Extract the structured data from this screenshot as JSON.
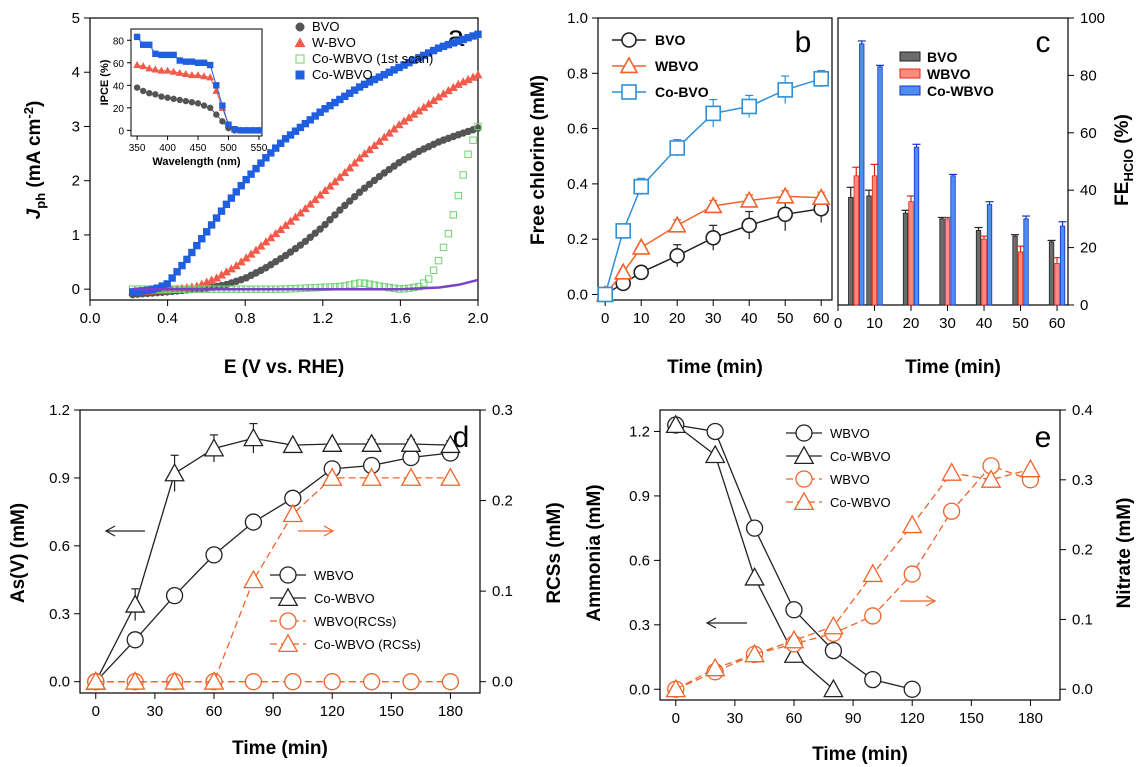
{
  "figure": {
    "panels": [
      "a",
      "b",
      "c",
      "d",
      "e"
    ]
  },
  "colors": {
    "BVO": "#555555",
    "WBVO": "#f25a4a",
    "CoWBVO_scan1": "#6fd36f",
    "CoWBVO": "#1f5fe0",
    "orange": "#f0642a",
    "black": "#222222",
    "purple": "#7a42c8"
  },
  "chart_data": [
    {
      "panel": "a",
      "type": "line",
      "xlabel": "E (V vs. RHE)",
      "ylabel": "J",
      "ylabel_sub": "ph",
      "ylabel_unit": " (mA cm",
      "ylabel_sup": "-2",
      "ylabel_close": ")",
      "xlim": [
        0.0,
        2.0
      ],
      "ylim": [
        -0.2,
        5.0
      ],
      "xticks": [
        "0.0",
        "0.4",
        "0.8",
        "1.2",
        "1.6",
        "2.0"
      ],
      "yticks": [
        "0",
        "1",
        "2",
        "3",
        "4",
        "5"
      ],
      "legend": [
        "BVO",
        "W-BVO",
        "Co-WBVO (1st scan)",
        "Co-WBVO"
      ],
      "series": [
        {
          "name": "BVO",
          "x": [
            0.22,
            0.4,
            0.6,
            0.7,
            0.8,
            0.9,
            1.0,
            1.1,
            1.2,
            1.3,
            1.4,
            1.5,
            1.6,
            1.7,
            1.8,
            1.9,
            2.0
          ],
          "y": [
            -0.1,
            -0.05,
            0.02,
            0.08,
            0.2,
            0.38,
            0.6,
            0.85,
            1.15,
            1.5,
            1.82,
            2.1,
            2.35,
            2.55,
            2.72,
            2.85,
            2.97
          ]
        },
        {
          "name": "W-BVO",
          "x": [
            0.22,
            0.4,
            0.55,
            0.65,
            0.75,
            0.85,
            1.0,
            1.1,
            1.2,
            1.3,
            1.4,
            1.5,
            1.6,
            1.7,
            1.8,
            1.9,
            2.0
          ],
          "y": [
            -0.05,
            -0.02,
            0.05,
            0.2,
            0.42,
            0.7,
            1.15,
            1.45,
            1.78,
            2.1,
            2.45,
            2.75,
            3.05,
            3.3,
            3.55,
            3.78,
            3.95
          ]
        },
        {
          "name": "Co-WBVO (1st scan)",
          "x": [
            0.22,
            0.6,
            1.0,
            1.3,
            1.4,
            1.5,
            1.6,
            1.65,
            1.7,
            1.75,
            1.8,
            1.85,
            1.9,
            1.95,
            2.0
          ],
          "y": [
            0.0,
            0.0,
            0.0,
            0.05,
            0.12,
            0.05,
            0.0,
            0.02,
            0.05,
            0.2,
            0.55,
            1.05,
            1.75,
            2.5,
            3.0
          ]
        },
        {
          "name": "Co-WBVO",
          "x": [
            0.22,
            0.3,
            0.35,
            0.4,
            0.5,
            0.6,
            0.7,
            0.8,
            0.9,
            1.0,
            1.2,
            1.4,
            1.6,
            1.8,
            2.0
          ],
          "y": [
            -0.05,
            -0.02,
            0.02,
            0.1,
            0.55,
            1.05,
            1.55,
            2.0,
            2.4,
            2.75,
            3.3,
            3.75,
            4.1,
            4.45,
            4.7
          ]
        },
        {
          "name": "",
          "x": [
            0.22,
            1.0,
            1.6,
            1.8,
            1.9,
            2.0
          ],
          "y": [
            0.0,
            0.0,
            0.0,
            0.03,
            0.08,
            0.17
          ]
        }
      ],
      "inset": {
        "xlabel": "Wavelength (nm)",
        "ylabel": "IPCE (%)",
        "xlim": [
          340,
          555
        ],
        "ylim": [
          -5,
          90
        ],
        "xticks": [
          "350",
          "400",
          "450",
          "500",
          "550"
        ],
        "yticks": [
          "0",
          "20",
          "40",
          "60",
          "80"
        ],
        "series": [
          {
            "name": "BVO",
            "x": [
              350,
              360,
              370,
              380,
              390,
              400,
              410,
              420,
              430,
              440,
              450,
              460,
              470,
              480,
              490,
              500,
              510,
              520,
              530,
              540,
              550
            ],
            "y": [
              38,
              35,
              33,
              32,
              30,
              29,
              28,
              27,
              26,
              25,
              24,
              22,
              20,
              14,
              8,
              2,
              0,
              0,
              0,
              0,
              0
            ]
          },
          {
            "name": "W-BVO",
            "x": [
              350,
              360,
              370,
              380,
              390,
              400,
              410,
              420,
              430,
              440,
              450,
              460,
              470,
              480,
              490,
              500,
              510,
              520,
              530,
              540,
              550
            ],
            "y": [
              58,
              57,
              55,
              54,
              53,
              53,
              52,
              51,
              50,
              49,
              49,
              48,
              47,
              35,
              20,
              5,
              1,
              0,
              0,
              0,
              0
            ]
          },
          {
            "name": "Co-WBVO",
            "x": [
              350,
              360,
              370,
              380,
              390,
              400,
              410,
              420,
              430,
              440,
              450,
              460,
              470,
              480,
              490,
              500,
              510,
              520,
              530,
              540,
              550
            ],
            "y": [
              83,
              76,
              76,
              68,
              67,
              67,
              67,
              62,
              61,
              61,
              60,
              60,
              58,
              40,
              22,
              5,
              1,
              0,
              0,
              0,
              0
            ]
          }
        ]
      }
    },
    {
      "panel": "b",
      "type": "line",
      "xlabel": "Time (min)",
      "ylabel": "Free chlorine (mM)",
      "xlim": [
        -2,
        63
      ],
      "ylim": [
        -0.02,
        1.0
      ],
      "xticks": [
        "0",
        "10",
        "20",
        "30",
        "40",
        "50",
        "60"
      ],
      "yticks": [
        "0.0",
        "0.2",
        "0.4",
        "0.6",
        "0.8",
        "1.0"
      ],
      "legend": [
        "BVO",
        "WBVO",
        "Co-BVO"
      ],
      "series": [
        {
          "name": "BVO",
          "x": [
            0,
            5,
            10,
            20,
            30,
            40,
            50,
            60
          ],
          "y": [
            0.0,
            0.04,
            0.08,
            0.14,
            0.205,
            0.25,
            0.29,
            0.31
          ],
          "err": [
            0,
            0.01,
            0.02,
            0.04,
            0.045,
            0.05,
            0.06,
            0.05
          ]
        },
        {
          "name": "WBVO",
          "x": [
            0,
            5,
            10,
            20,
            30,
            40,
            50,
            60
          ],
          "y": [
            0.0,
            0.08,
            0.17,
            0.25,
            0.32,
            0.34,
            0.355,
            0.35
          ],
          "err": [
            0,
            0.01,
            0.01,
            0.02,
            0.02,
            0.02,
            0.02,
            0.02
          ]
        },
        {
          "name": "Co-BVO",
          "x": [
            0,
            5,
            10,
            20,
            30,
            40,
            50,
            60
          ],
          "y": [
            0.0,
            0.23,
            0.39,
            0.53,
            0.655,
            0.68,
            0.74,
            0.78
          ],
          "err": [
            0,
            0.02,
            0.03,
            0.03,
            0.05,
            0.04,
            0.05,
            0.03
          ]
        }
      ]
    },
    {
      "panel": "c",
      "type": "bar",
      "xlabel": "Time (min)",
      "ylabel": "FE",
      "ylabel_sub": "HClO",
      "ylabel_unit": " (%)",
      "xlim": [
        0,
        63
      ],
      "ylim": [
        0,
        100
      ],
      "xticks": [
        "0",
        "10",
        "20",
        "30",
        "40",
        "50",
        "60"
      ],
      "yticks": [
        "0",
        "20",
        "40",
        "60",
        "80",
        "100"
      ],
      "legend": [
        "BVO",
        "WBVO",
        "Co-WBVO"
      ],
      "categories": [
        5,
        10,
        20,
        30,
        40,
        50,
        60
      ],
      "series": [
        {
          "name": "BVO",
          "values": [
            37.5,
            38,
            32,
            30,
            26,
            24,
            22
          ],
          "err": [
            3.5,
            2,
            1,
            0.5,
            1,
            0.5,
            0.5
          ]
        },
        {
          "name": "WBVO",
          "values": [
            45,
            45,
            36,
            30,
            23,
            18.5,
            14.5
          ],
          "err": [
            3,
            4,
            2,
            0.5,
            1,
            2,
            2
          ]
        },
        {
          "name": "Co-WBVO",
          "values": [
            91,
            83,
            55,
            45,
            35,
            30,
            27.5
          ],
          "err": [
            1,
            0.5,
            1,
            0.5,
            1,
            1,
            1.5
          ]
        }
      ]
    },
    {
      "panel": "d",
      "type": "line",
      "xlabel": "Time (min)",
      "ylabel": "As(V) (mM)",
      "y2label": "RCSs (mM)",
      "xlim": [
        -8,
        195
      ],
      "ylim": [
        -0.05,
        1.2
      ],
      "y2lim": [
        -0.0125,
        0.3
      ],
      "xticks": [
        "0",
        "30",
        "60",
        "90",
        "120",
        "150",
        "180"
      ],
      "yticks": [
        "0.0",
        "0.3",
        "0.6",
        "0.9",
        "1.2"
      ],
      "y2ticks": [
        "0.0",
        "0.1",
        "0.2",
        "0.3"
      ],
      "legend": [
        "WBVO",
        "Co-WBVO",
        "WBVO(RCSs)",
        "Co-WBVO (RCSs)"
      ],
      "series": [
        {
          "name": "WBVO",
          "axis": "y",
          "x": [
            0,
            20,
            40,
            60,
            80,
            100,
            120,
            140,
            160,
            180
          ],
          "y": [
            0.0,
            0.185,
            0.38,
            0.56,
            0.705,
            0.81,
            0.94,
            0.955,
            0.99,
            1.01
          ],
          "err": [
            0,
            0.01,
            0.01,
            0.01,
            0.01,
            0.01,
            0.01,
            0.01,
            0.01,
            0.01
          ]
        },
        {
          "name": "Co-WBVO",
          "axis": "y",
          "x": [
            0,
            20,
            40,
            60,
            80,
            100,
            120,
            140,
            160,
            180
          ],
          "y": [
            0.0,
            0.34,
            0.92,
            1.03,
            1.075,
            1.045,
            1.05,
            1.05,
            1.05,
            1.045
          ],
          "err": [
            0,
            0.07,
            0.08,
            0.06,
            0.065,
            0.01,
            0.01,
            0.02,
            0.02,
            0.02
          ]
        },
        {
          "name": "WBVO(RCSs)",
          "axis": "y2",
          "x": [
            0,
            20,
            40,
            60,
            80,
            100,
            120,
            140,
            160,
            180
          ],
          "y": [
            0,
            0,
            0,
            0,
            0,
            0,
            0,
            0,
            0,
            0
          ]
        },
        {
          "name": "Co-WBVO (RCSs)",
          "axis": "y2",
          "x": [
            0,
            20,
            40,
            60,
            80,
            100,
            120,
            140,
            160,
            180
          ],
          "y": [
            0,
            0,
            0,
            0,
            0.112,
            0.185,
            0.225,
            0.225,
            0.225,
            0.225
          ]
        }
      ]
    },
    {
      "panel": "e",
      "type": "line",
      "xlabel": "Time (min)",
      "ylabel": "Ammonia (mM)",
      "y2label": "Nitrate (mM)",
      "xlim": [
        -8,
        195
      ],
      "ylim": [
        -0.05,
        1.3
      ],
      "y2lim": [
        -0.0154,
        0.4
      ],
      "xticks": [
        "0",
        "30",
        "60",
        "90",
        "120",
        "150",
        "180"
      ],
      "yticks": [
        "0.0",
        "0.3",
        "0.6",
        "0.9",
        "1.2"
      ],
      "y2ticks": [
        "0.0",
        "0.1",
        "0.2",
        "0.3",
        "0.4"
      ],
      "legend": [
        "WBVO",
        "Co-WBVO",
        "WBVO",
        "Co-WBVO"
      ],
      "series": [
        {
          "name": "WBVO",
          "axis": "y",
          "x": [
            0,
            20,
            40,
            60,
            80,
            100,
            120
          ],
          "y": [
            1.23,
            1.2,
            0.75,
            0.37,
            0.18,
            0.045,
            0.0
          ]
        },
        {
          "name": "Co-WBVO",
          "axis": "y",
          "x": [
            0,
            20,
            40,
            60,
            80
          ],
          "y": [
            1.23,
            1.09,
            0.52,
            0.16,
            0.0
          ]
        },
        {
          "name": "WBVO",
          "axis": "y2",
          "x": [
            0,
            20,
            40,
            60,
            80,
            100,
            120,
            140,
            160,
            180
          ],
          "y": [
            0.0,
            0.025,
            0.05,
            0.065,
            0.08,
            0.105,
            0.165,
            0.255,
            0.32,
            0.3
          ]
        },
        {
          "name": "Co-WBVO",
          "axis": "y2",
          "x": [
            0,
            20,
            40,
            60,
            80,
            100,
            120,
            140,
            160,
            180
          ],
          "y": [
            0.0,
            0.03,
            0.05,
            0.07,
            0.09,
            0.165,
            0.235,
            0.31,
            0.3,
            0.315
          ]
        }
      ]
    }
  ]
}
